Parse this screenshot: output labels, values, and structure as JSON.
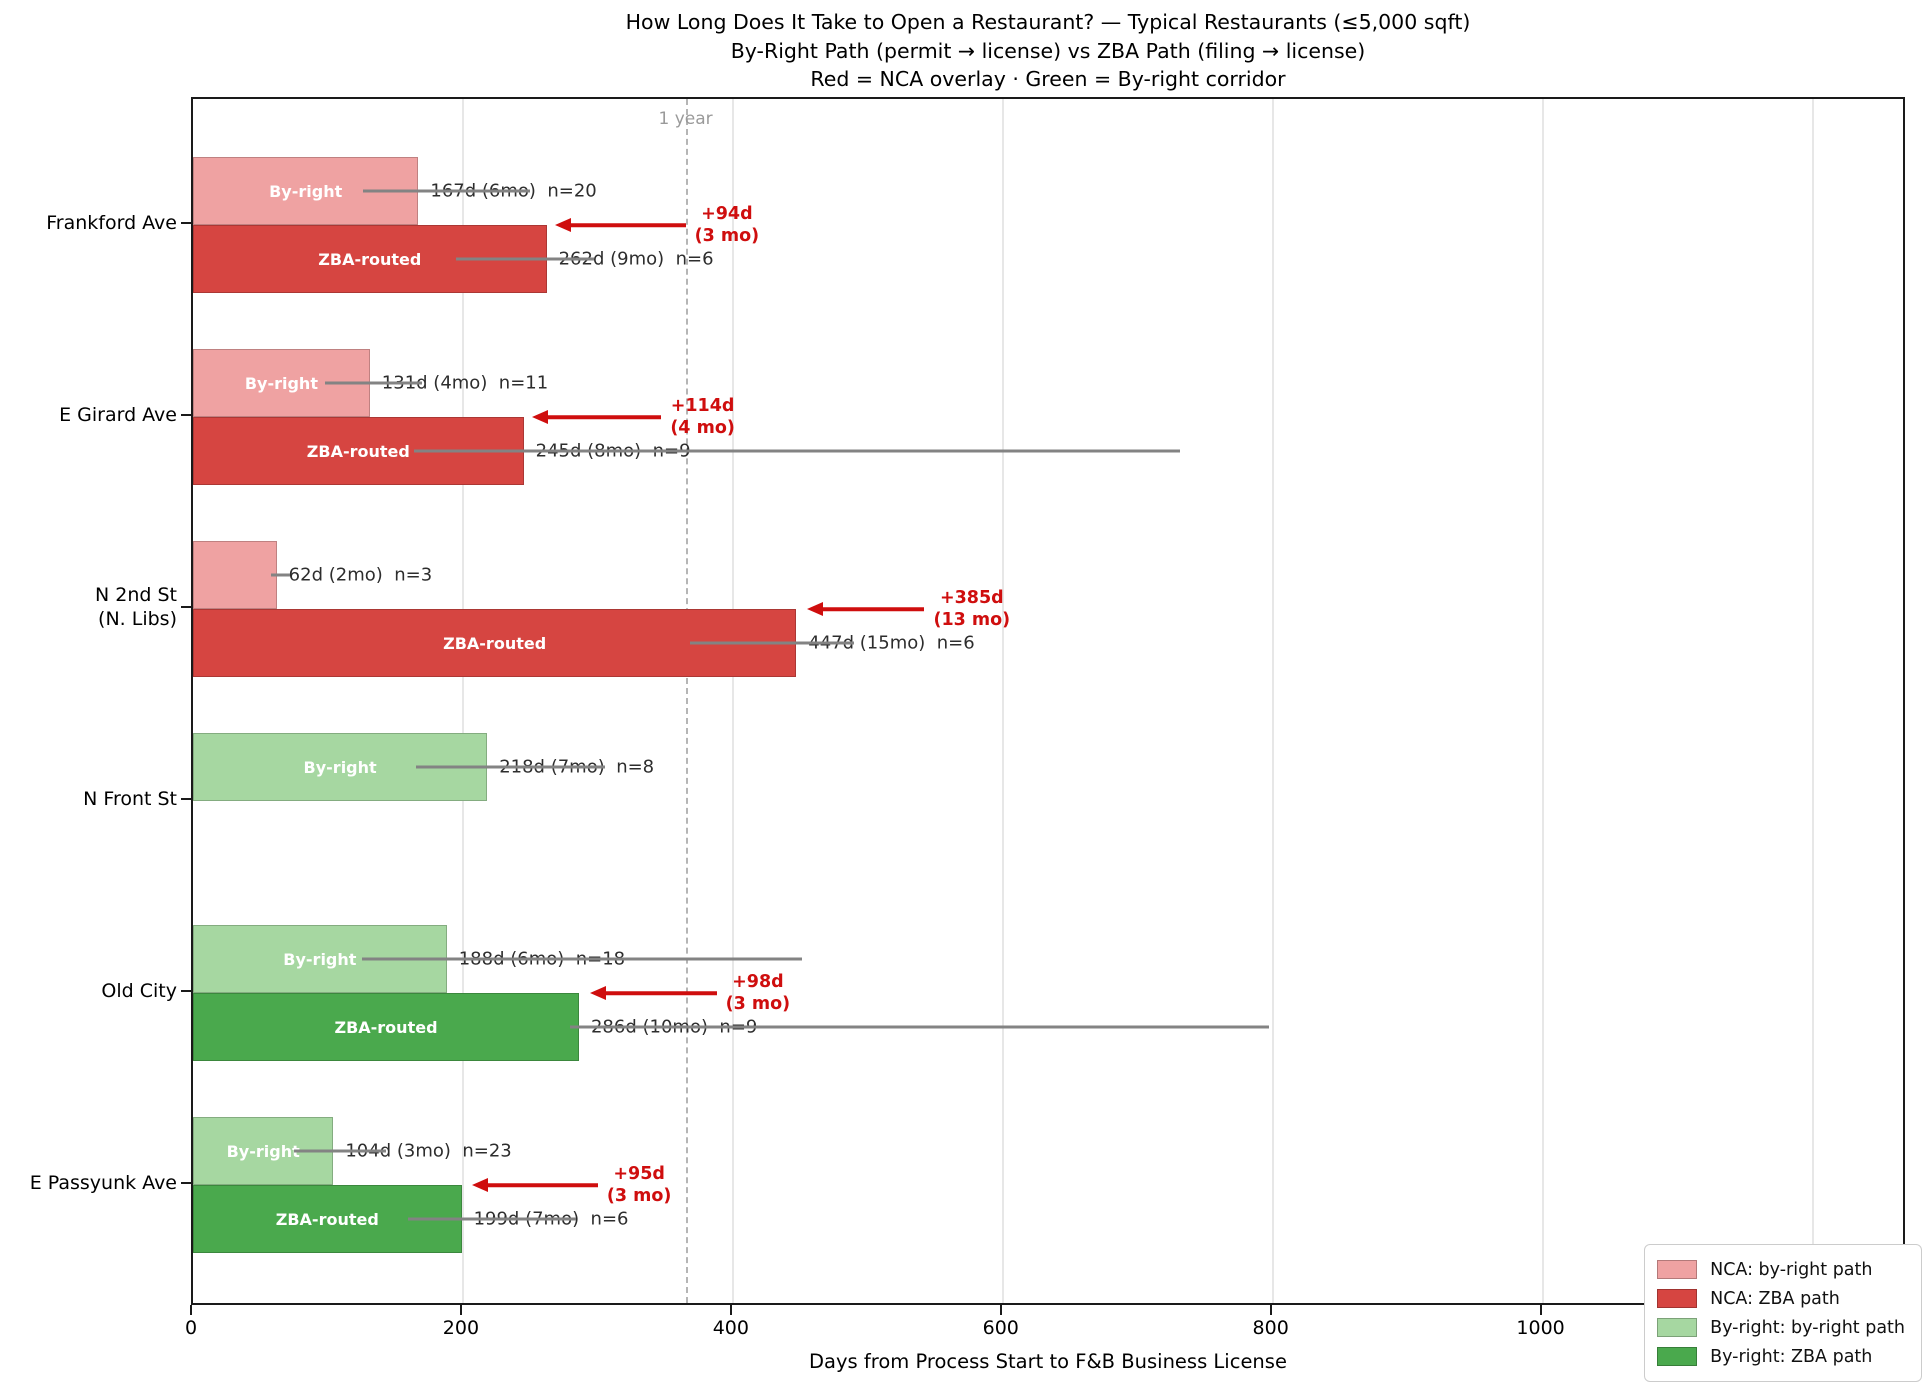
{
  "title": {
    "line1": "How Long Does It Take to Open a Restaurant? — Typical Restaurants (≤5,000 sqft)",
    "line2": "By-Right Path (permit → license) vs ZBA Path (filing → license)",
    "line3": "Red = NCA overlay · Green = By-right corridor"
  },
  "chart_data": {
    "type": "bar",
    "orientation": "horizontal",
    "xlabel": "Days from Process Start to F&B Business License",
    "xlim": [
      0,
      1270
    ],
    "xticks": [
      0,
      200,
      400,
      600,
      800,
      1000,
      1200
    ],
    "grid": "vertical",
    "reference_line": {
      "days": 365,
      "label": "1 year"
    },
    "colors": {
      "nca_light": "#efa2a2",
      "nca_dark": "#d64541",
      "byright_light": "#a6d7a1",
      "byright_dark": "#4aa94d",
      "annotation_red": "#cf0e0e",
      "whisker_gray": "#838383"
    },
    "legend": {
      "position": "lower right",
      "entries": [
        {
          "label": "NCA: by-right path",
          "color": "nca_light"
        },
        {
          "label": "NCA: ZBA path",
          "color": "nca_dark"
        },
        {
          "label": "By-right: by-right path",
          "color": "byright_light"
        },
        {
          "label": "By-right: ZBA path",
          "color": "byright_dark"
        }
      ]
    },
    "corridors": [
      {
        "name": "Frankford Ave",
        "name_lines": [
          "Frankford Ave"
        ],
        "overlay": "NCA",
        "bars": [
          {
            "path": "by-right",
            "path_label": "By-right",
            "days": 167,
            "n": 20,
            "value_label": "167d (6mo)  n=20",
            "whisker_days": [
              126,
              250
            ],
            "color": "nca_light"
          },
          {
            "path": "zba",
            "path_label": "ZBA-routed",
            "days": 262,
            "n": 6,
            "value_label": "262d (9mo)  n=6",
            "whisker_days": [
              195,
              297
            ],
            "color": "nca_dark"
          }
        ],
        "delta_annotation": {
          "text_lines": [
            "+94d",
            "(3 mo)"
          ],
          "arrow_tip_days": 268,
          "arrow_tail_days": 365
        }
      },
      {
        "name": "E Girard Ave",
        "name_lines": [
          "E Girard Ave"
        ],
        "overlay": "NCA",
        "bars": [
          {
            "path": "by-right",
            "path_label": "By-right",
            "days": 131,
            "n": 11,
            "value_label": "131d (4mo)  n=11",
            "whisker_days": [
              98,
              170
            ],
            "color": "nca_light"
          },
          {
            "path": "zba",
            "path_label": "ZBA-routed",
            "days": 245,
            "n": 9,
            "value_label": "245d (8mo)  n=9",
            "whisker_days": [
              164,
              731
            ],
            "color": "nca_dark"
          }
        ],
        "delta_annotation": {
          "text_lines": [
            "+114d",
            "(4 mo)"
          ],
          "arrow_tip_days": 251,
          "arrow_tail_days": 347
        }
      },
      {
        "name": "N 2nd St (N. Libs)",
        "name_lines": [
          "N 2nd St",
          "(N. Libs)"
        ],
        "overlay": "NCA",
        "bars": [
          {
            "path": "by-right",
            "path_label": "",
            "days": 62,
            "n": 3,
            "value_label": "62d (2mo)  n=3",
            "whisker_days": [
              58,
              72
            ],
            "color": "nca_light"
          },
          {
            "path": "zba",
            "path_label": "ZBA-routed",
            "days": 447,
            "n": 6,
            "value_label": "447d (15mo)  n=6",
            "whisker_days": [
              368,
              490
            ],
            "color": "nca_dark"
          }
        ],
        "delta_annotation": {
          "text_lines": [
            "+385d",
            "(13 mo)"
          ],
          "arrow_tip_days": 455,
          "arrow_tail_days": 542
        }
      },
      {
        "name": "N Front St",
        "name_lines": [
          "N Front St"
        ],
        "overlay": "By-right",
        "bars": [
          {
            "path": "by-right",
            "path_label": "By-right",
            "days": 218,
            "n": 8,
            "value_label": "218d (7mo)  n=8",
            "whisker_days": [
              165,
              305
            ],
            "color": "byright_light"
          }
        ]
      },
      {
        "name": "Old City",
        "name_lines": [
          "Old City"
        ],
        "overlay": "By-right",
        "bars": [
          {
            "path": "by-right",
            "path_label": "By-right",
            "days": 188,
            "n": 18,
            "value_label": "188d (6mo)  n=18",
            "whisker_days": [
              125,
              451
            ],
            "color": "byright_light"
          },
          {
            "path": "zba",
            "path_label": "ZBA-routed",
            "days": 286,
            "n": 9,
            "value_label": "286d (10mo)  n=9",
            "whisker_days": [
              279,
              797
            ],
            "color": "byright_dark"
          }
        ],
        "delta_annotation": {
          "text_lines": [
            "+98d",
            "(3 mo)"
          ],
          "arrow_tip_days": 294,
          "arrow_tail_days": 388
        }
      },
      {
        "name": "E Passyunk Ave",
        "name_lines": [
          "E Passyunk Ave"
        ],
        "overlay": "By-right",
        "bars": [
          {
            "path": "by-right",
            "path_label": "By-right",
            "days": 104,
            "n": 23,
            "value_label": "104d (3mo)  n=23",
            "whisker_days": [
              75,
              143
            ],
            "color": "byright_light"
          },
          {
            "path": "zba",
            "path_label": "ZBA-routed",
            "days": 199,
            "n": 6,
            "value_label": "199d (7mo)  n=6",
            "whisker_days": [
              159,
              284
            ],
            "color": "byright_dark"
          }
        ],
        "delta_annotation": {
          "text_lines": [
            "+95d",
            "(3 mo)"
          ],
          "arrow_tip_days": 207,
          "arrow_tail_days": 300
        }
      }
    ]
  }
}
